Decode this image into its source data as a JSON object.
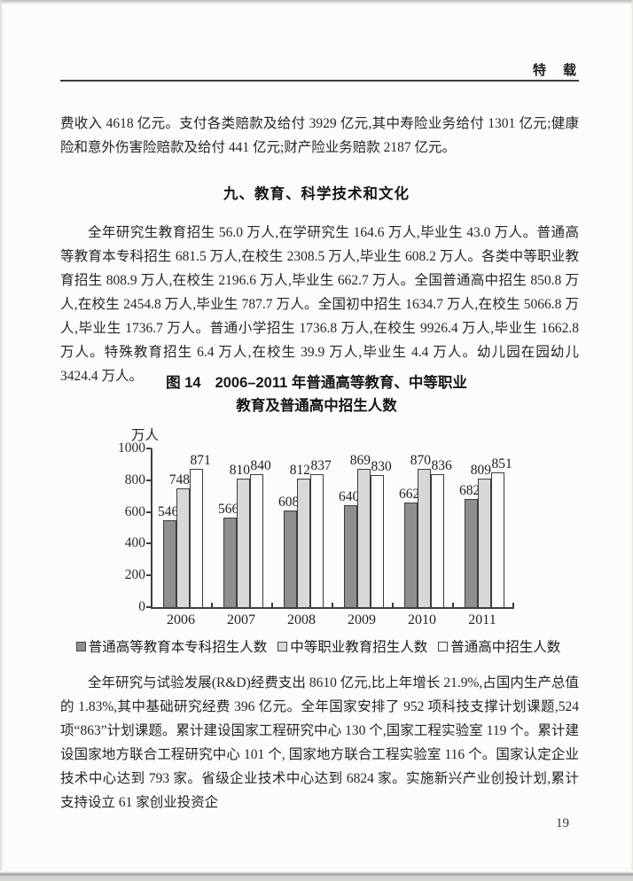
{
  "header": {
    "label": "特　载"
  },
  "content": {
    "p1": "费收入 4618 亿元。支付各类赔款及给付 3929 亿元,其中寿险业务给付 1301 亿元;健康险和意外伤害险赔款及给付 441 亿元;财产险业务赔款 2187 亿元。",
    "section_heading": "九、教育、科学技术和文化",
    "p2": "全年研究生教育招生 56.0 万人,在学研究生 164.6 万人,毕业生 43.0 万人。普通高等教育本专科招生 681.5 万人,在校生 2308.5 万人,毕业生 608.2 万人。各类中等职业教育招生 808.9 万人,在校生 2196.6 万人,毕业生 662.7 万人。全国普通高中招生 850.8 万人,在校生 2454.8 万人,毕业生 787.7 万人。全国初中招生 1634.7 万人,在校生 5066.8 万人,毕业生 1736.7 万人。普通小学招生 1736.8 万人,在校生 9926.4 万人,毕业生 1662.8 万人。特殊教育招生 6.4 万人,在校生 39.9 万人,毕业生 4.4 万人。幼儿园在园幼儿 3424.4 万人。",
    "p3": "全年研究与试验发展(R&D)经费支出 8610 亿元,比上年增长 21.9%,占国内生产总值的 1.83%,其中基础研究经费 396 亿元。全年国家安排了 952 项科技支撑计划课题,524 项“863”计划课题。累计建设国家工程研究中心 130 个,国家工程实验室 119 个。累计建设国家地方联合工程研究中心 101 个, 国家地方联合工程实验室 116 个。国家认定企业技术中心达到 793 家。省级企业技术中心达到 6824 家。实施新兴产业创投计划,累计支持设立 61 家创业投资企"
  },
  "footer": {
    "page_number": "19"
  },
  "chart_data": {
    "type": "bar",
    "figure_label": "图 14",
    "title_line1": "2006–2011 年普通高等教育、中等职业",
    "title_line2": "教育及普通高中招生人数",
    "unit_label": "万人",
    "categories": [
      "2006",
      "2007",
      "2008",
      "2009",
      "2010",
      "2011"
    ],
    "series": [
      {
        "name": "普通高等教育本专科招生人数",
        "color": "#8f8f8f",
        "values": [
          546,
          566,
          608,
          640,
          662,
          682
        ]
      },
      {
        "name": "中等职业教育招生人数",
        "color": "#d8d8d8",
        "values": [
          748,
          810,
          812,
          869,
          870,
          809
        ]
      },
      {
        "name": "普通高中招生人数",
        "color": "#fdfdfd",
        "values": [
          871,
          840,
          837,
          830,
          836,
          851
        ]
      }
    ],
    "ylim": [
      0,
      1000
    ],
    "yticks": [
      0,
      200,
      400,
      600,
      800,
      1000
    ],
    "grid": false,
    "legend_position": "bottom"
  }
}
